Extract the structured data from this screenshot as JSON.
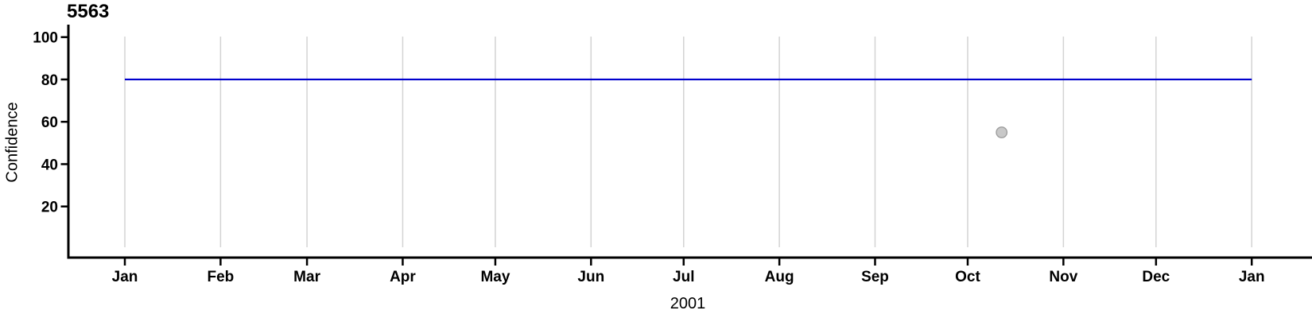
{
  "figure": {
    "title": "5563",
    "y_axis_label": "Confidence",
    "x_axis_label": "2001"
  },
  "chart_data": {
    "type": "line",
    "title": "5563",
    "xlabel": "2001",
    "ylabel": "Confidence",
    "x_unit": "day_of_year",
    "x_tick_labels": [
      "Jan",
      "Feb",
      "Mar",
      "Apr",
      "May",
      "Jun",
      "Jul",
      "Aug",
      "Sep",
      "Oct",
      "Nov",
      "Dec",
      "Jan"
    ],
    "x_tick_days": [
      0,
      31,
      59,
      90,
      120,
      151,
      181,
      212,
      243,
      273,
      304,
      334,
      365
    ],
    "xlim_days": [
      0,
      365
    ],
    "y_ticks": [
      20,
      40,
      60,
      80,
      100
    ],
    "ylim": [
      0,
      100
    ],
    "grid": "vertical-only",
    "legend": "none",
    "series": [
      {
        "name": "confidence-line",
        "type": "line",
        "color": "#0000cd",
        "points": [
          [
            0,
            80
          ],
          [
            365,
            80
          ]
        ]
      }
    ],
    "points": [
      {
        "name": "observation-point",
        "day": 284,
        "approx_date": "Oct 12",
        "value": 55,
        "fill": "#c8c8c8",
        "stroke": "#9e9e9e"
      }
    ],
    "colors": {
      "axis": "#000000",
      "gridline": "#d3d3d3",
      "line": "#0000cd",
      "point_fill": "#c8c8c8",
      "point_stroke": "#9e9e9e",
      "text": "#000000",
      "background": "#ffffff"
    }
  }
}
